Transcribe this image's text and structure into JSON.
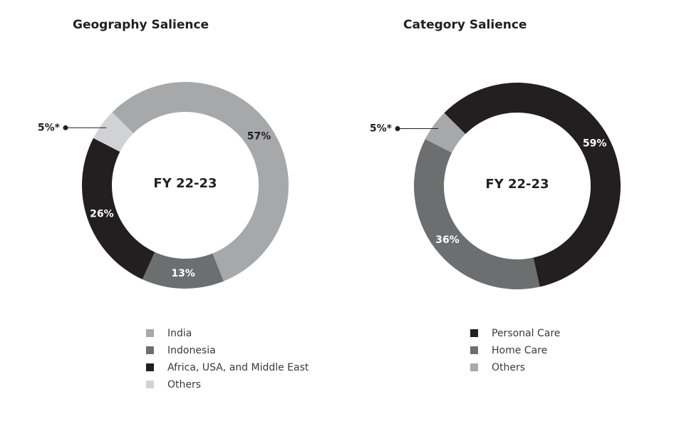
{
  "chart_data": [
    {
      "type": "donut",
      "title": "Geography Salience",
      "center_label": "FY 22-23",
      "categories": [
        "India",
        "Indonesia",
        "Africa, USA, and Middle East",
        "Others"
      ],
      "values": [
        57,
        13,
        26,
        5
      ],
      "value_labels": [
        "57%",
        "13%",
        "26%",
        "5%*"
      ],
      "colors": [
        "#a7a8aa",
        "#6d6e70",
        "#231f20",
        "#d1d2d4"
      ]
    },
    {
      "type": "donut",
      "title": "Category Salience",
      "center_label": "FY 22-23",
      "categories": [
        "Personal Care",
        "Home Care",
        "Others"
      ],
      "values": [
        59,
        36,
        5
      ],
      "value_labels": [
        "59%",
        "36%",
        "5%*"
      ],
      "colors": [
        "#231f20",
        "#6d6e70",
        "#a7a8aa"
      ]
    }
  ]
}
